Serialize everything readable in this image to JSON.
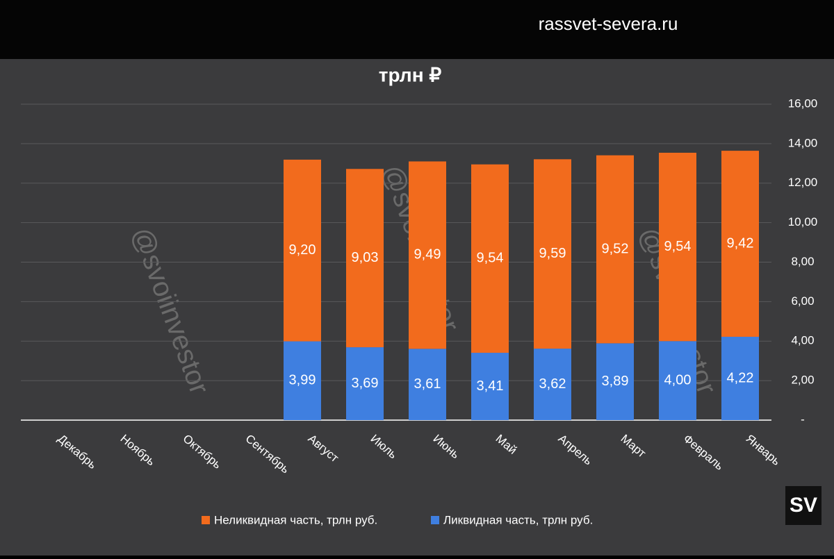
{
  "header": {
    "site": "rassvet-severa.ru"
  },
  "watermark": "@svoiinvestor",
  "logo": "SV",
  "chart_data": {
    "type": "stacked-bar",
    "title": "трлн ₽",
    "categories": [
      "Январь",
      "Февраль",
      "Март",
      "Апрель",
      "Май",
      "Июнь",
      "Июль",
      "Август",
      "Сентябрь",
      "Октябрь",
      "Ноябрь",
      "Декабрь"
    ],
    "series": [
      {
        "name": "Ликвидная часть, трлн руб.",
        "color": "#3f7fe0",
        "values": [
          4.22,
          4.0,
          3.89,
          3.62,
          3.41,
          3.61,
          3.69,
          3.99,
          null,
          null,
          null,
          null
        ],
        "value_labels": [
          "4,22",
          "4,00",
          "3,89",
          "3,62",
          "3,41",
          "3,61",
          "3,69",
          "3,99",
          null,
          null,
          null,
          null
        ]
      },
      {
        "name": "Неликвидная часть, трлн руб.",
        "color": "#f26b1d",
        "values": [
          9.42,
          9.54,
          9.52,
          9.59,
          9.54,
          9.49,
          9.03,
          9.2,
          null,
          null,
          null,
          null
        ],
        "value_labels": [
          "9,42",
          "9,54",
          "9,52",
          "9,59",
          "9,54",
          "9,49",
          "9,03",
          "9,20",
          null,
          null,
          null,
          null
        ]
      }
    ],
    "ylim": [
      0,
      16
    ],
    "yticks": [
      {
        "value": 0,
        "label": "-"
      },
      {
        "value": 2,
        "label": "2,00"
      },
      {
        "value": 4,
        "label": "4,00"
      },
      {
        "value": 6,
        "label": "6,00"
      },
      {
        "value": 8,
        "label": "8,00"
      },
      {
        "value": 10,
        "label": "10,00"
      },
      {
        "value": 12,
        "label": "12,00"
      },
      {
        "value": 14,
        "label": "14,00"
      },
      {
        "value": 16,
        "label": "16,00"
      }
    ],
    "grid": true,
    "axis_side": "right",
    "category_order": "right-to-left"
  }
}
